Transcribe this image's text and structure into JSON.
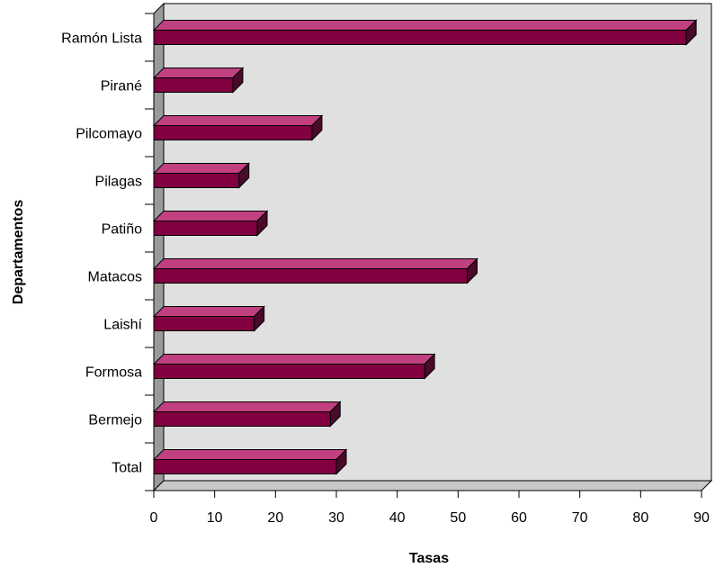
{
  "chart_data": {
    "type": "bar",
    "orientation": "horizontal",
    "style": "3d",
    "xlabel": "Tasas",
    "ylabel": "Departamentos",
    "xlim": [
      0,
      90
    ],
    "xticks": [
      "0",
      "10",
      "20",
      "30",
      "40",
      "50",
      "60",
      "70",
      "80",
      "90"
    ],
    "categories": [
      "Ramón Lista",
      "Pirané",
      "Pilcomayo",
      "Pilagas",
      "Patiño",
      "Matacos",
      "Laishí",
      "Formosa",
      "Bermejo",
      "Total"
    ],
    "values": [
      87.5,
      13,
      26,
      14,
      17,
      51.5,
      16.5,
      44.5,
      29,
      30
    ],
    "colors": {
      "bar_front": "#800040",
      "bar_top": "#c04080",
      "bar_side": "#4a0a2a",
      "plot_back": "#e0e0e0",
      "plot_wall": "#9a9a9a",
      "plot_floor": "#c8c8c8"
    },
    "legend": "none",
    "grid": false
  }
}
